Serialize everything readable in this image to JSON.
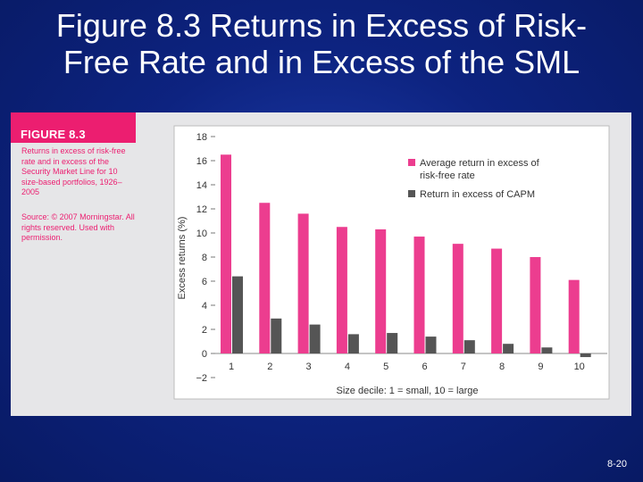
{
  "slide": {
    "title_line1": "Figure 8.3 Returns in Excess of Risk-",
    "title_line2": "Free Rate and in Excess of the SML",
    "page_number": "8-20"
  },
  "figure": {
    "label": "FIGURE 8.3",
    "caption": "Returns in excess of risk-free rate and in excess of the Security Market Line for 10 size-based portfolios, 1926–2005",
    "source": "Source: © 2007 Morningstar. All rights reserved. Used with permission."
  },
  "colors": {
    "series_average": "#ec3d8f",
    "series_capm": "#555555",
    "panel_background": "#e6e6e8",
    "accent": "#ec1e70"
  },
  "chart_data": {
    "type": "bar",
    "xlabel": "Size decile: 1 = small, 10 = large",
    "ylabel": "Excess returns (%)",
    "ylim": [
      -2,
      18
    ],
    "yticks": [
      -2,
      0,
      2,
      4,
      6,
      8,
      10,
      12,
      14,
      16,
      18
    ],
    "yticklabels": [
      "−2",
      "0",
      "2",
      "4",
      "6",
      "8",
      "10",
      "12",
      "14",
      "16",
      "18"
    ],
    "categories": [
      "1",
      "2",
      "3",
      "4",
      "5",
      "6",
      "7",
      "8",
      "9",
      "10"
    ],
    "legend_position": "top-right",
    "grid": false,
    "series": [
      {
        "name": "Average return in excess of risk-free rate",
        "values": [
          16.5,
          12.5,
          11.6,
          10.5,
          10.3,
          9.7,
          9.1,
          8.7,
          8.0,
          6.1
        ]
      },
      {
        "name": "Return in excess of CAPM",
        "values": [
          6.4,
          2.9,
          2.4,
          1.6,
          1.7,
          1.4,
          1.1,
          0.8,
          0.5,
          -0.3
        ]
      }
    ]
  }
}
